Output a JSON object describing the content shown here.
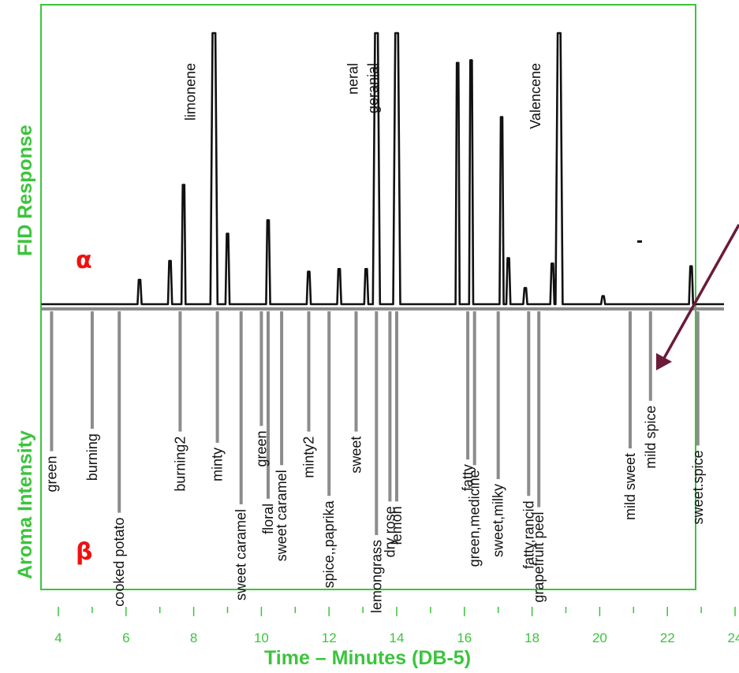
{
  "chart_data": {
    "type": "line",
    "xlabel": "Time – Minutes (DB-5)",
    "x_range": [
      3.5,
      24
    ],
    "x_ticks": [
      "4",
      "6",
      "8",
      "10",
      "12",
      "14",
      "16",
      "18",
      "20",
      "22",
      "24"
    ],
    "panels": {
      "top": {
        "marker": "α",
        "ylabel": "FID Response"
      },
      "bottom": {
        "marker": "β",
        "ylabel": "Aroma Intensity"
      }
    },
    "series": [
      {
        "name": "FID Response",
        "points": [
          {
            "x": 6.4,
            "y": 0.09
          },
          {
            "x": 7.3,
            "y": 0.16
          },
          {
            "x": 7.7,
            "y": 0.44
          },
          {
            "x": 8.6,
            "y": 1.0,
            "label": "limonene"
          },
          {
            "x": 9.0,
            "y": 0.26
          },
          {
            "x": 10.2,
            "y": 0.31
          },
          {
            "x": 11.4,
            "y": 0.12
          },
          {
            "x": 12.3,
            "y": 0.13
          },
          {
            "x": 13.1,
            "y": 0.13
          },
          {
            "x": 13.4,
            "y": 1.0,
            "label": "neral"
          },
          {
            "x": 14.0,
            "y": 1.0,
            "label": "geranial"
          },
          {
            "x": 15.8,
            "y": 0.89
          },
          {
            "x": 16.2,
            "y": 0.9
          },
          {
            "x": 17.1,
            "y": 0.69
          },
          {
            "x": 17.3,
            "y": 0.17
          },
          {
            "x": 17.8,
            "y": 0.06
          },
          {
            "x": 18.6,
            "y": 0.15
          },
          {
            "x": 18.8,
            "y": 1.0,
            "label": "Valencene"
          },
          {
            "x": 20.1,
            "y": 0.03
          },
          {
            "x": 22.7,
            "y": 0.14
          }
        ]
      },
      {
        "name": "Aroma Intensity",
        "points": [
          {
            "x": 3.8,
            "y": 0.5,
            "label": "green"
          },
          {
            "x": 5.0,
            "y": 0.42,
            "label": "burning"
          },
          {
            "x": 5.8,
            "y": 0.72,
            "label": "cooked potato"
          },
          {
            "x": 7.6,
            "y": 0.43,
            "label": "burning2"
          },
          {
            "x": 8.7,
            "y": 0.47,
            "label": "minty"
          },
          {
            "x": 9.4,
            "y": 0.69,
            "label": "sweet caramel"
          },
          {
            "x": 10.0,
            "y": 0.41,
            "label": "green"
          },
          {
            "x": 10.2,
            "y": 0.67,
            "label": "floral"
          },
          {
            "x": 10.6,
            "y": 0.55,
            "label": "sweet caramel"
          },
          {
            "x": 11.4,
            "y": 0.43,
            "label": "minty2"
          },
          {
            "x": 12.0,
            "y": 0.66,
            "label": "spice,,paprika"
          },
          {
            "x": 12.8,
            "y": 0.43,
            "label": "sweet"
          },
          {
            "x": 13.4,
            "y": 0.8,
            "label": "lemongrass"
          },
          {
            "x": 13.8,
            "y": 0.68,
            "label": "dry rose"
          },
          {
            "x": 14.0,
            "y": 0.68,
            "label": "lemon"
          },
          {
            "x": 16.1,
            "y": 0.53,
            "label": "fatty"
          },
          {
            "x": 16.3,
            "y": 0.55,
            "label": "green,medicine"
          },
          {
            "x": 17.0,
            "y": 0.6,
            "label": "sweet,milky"
          },
          {
            "x": 17.9,
            "y": 0.66,
            "label": "fatty,rancid"
          },
          {
            "x": 18.2,
            "y": 0.7,
            "label": "grapefruit peel"
          },
          {
            "x": 20.9,
            "y": 0.49,
            "label": "mild sweet"
          },
          {
            "x": 21.5,
            "y": 0.32,
            "label": "mild spice"
          },
          {
            "x": 22.9,
            "y": 0.48,
            "label": "sweet.spice"
          }
        ]
      }
    ],
    "annotations": [
      {
        "type": "arrow",
        "direction": "down-left",
        "color": "#6b1a3a"
      }
    ],
    "colors": {
      "frame": "#3cc43c",
      "fid_trace": "#111111",
      "aroma_bars": "#8c8c8c",
      "panel_markers": "#ee1111",
      "arrow": "#6b1a3a"
    }
  }
}
